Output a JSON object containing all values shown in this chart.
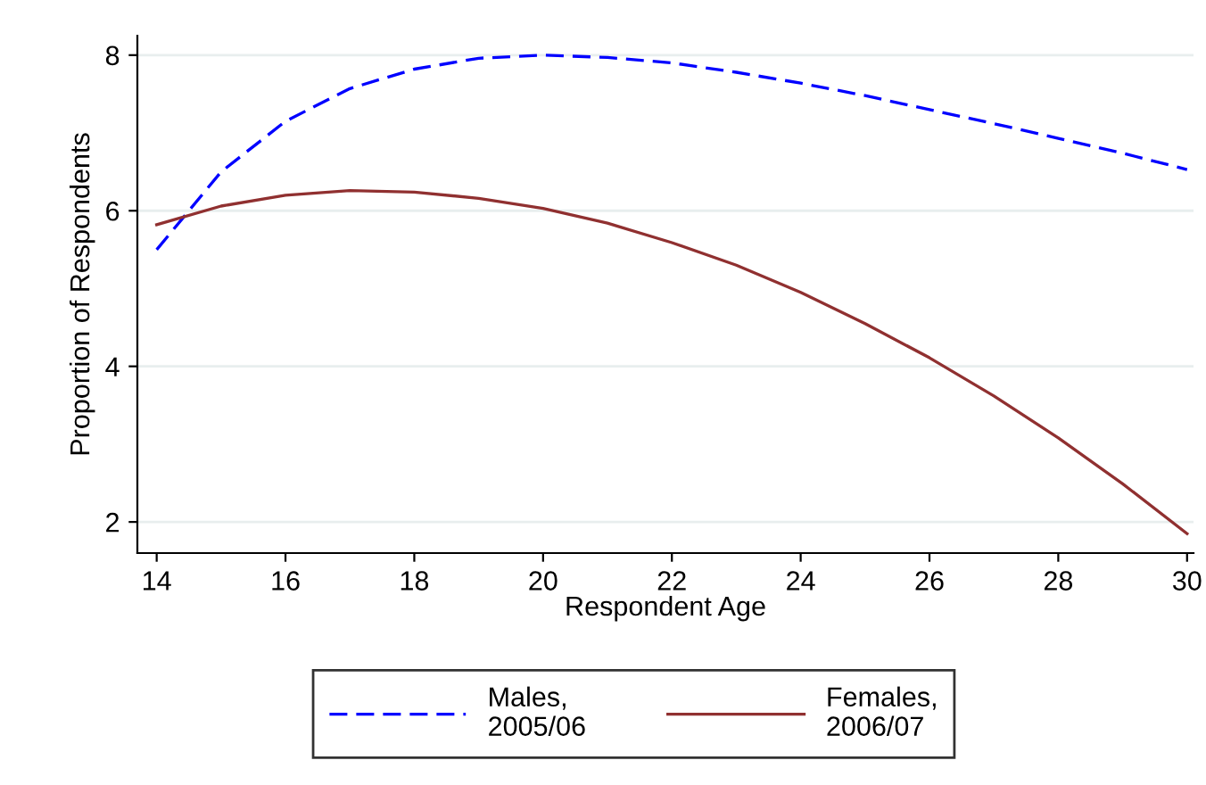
{
  "chart_data": {
    "type": "line",
    "xlabel": "Respondent Age",
    "ylabel": "Proportion of Respondents",
    "x": [
      14,
      15,
      16,
      17,
      18,
      19,
      20,
      21,
      22,
      23,
      24,
      25,
      26,
      27,
      28,
      29,
      30
    ],
    "series": [
      {
        "name": "Males,\n2005/06",
        "color": "#0000ff",
        "line_style": "dashed",
        "values": [
          5.5,
          6.5,
          7.15,
          7.57,
          7.82,
          7.96,
          8.0,
          7.97,
          7.9,
          7.78,
          7.64,
          7.48,
          7.3,
          7.12,
          6.93,
          6.74,
          6.53
        ]
      },
      {
        "name": "Females,\n2006/07",
        "color": "#903030",
        "line_style": "solid",
        "values": [
          5.82,
          6.06,
          6.2,
          6.26,
          6.24,
          6.16,
          6.03,
          5.84,
          5.59,
          5.3,
          4.95,
          4.55,
          4.11,
          3.62,
          3.08,
          2.49,
          1.85
        ]
      }
    ],
    "xlim": [
      13.7,
      30.1
    ],
    "ylim": [
      1.6,
      8.25
    ],
    "xticks": [
      14,
      16,
      18,
      20,
      22,
      24,
      26,
      28,
      30
    ],
    "yticks": [
      2,
      4,
      6,
      8
    ],
    "grid": "y",
    "legend": "bottom"
  }
}
